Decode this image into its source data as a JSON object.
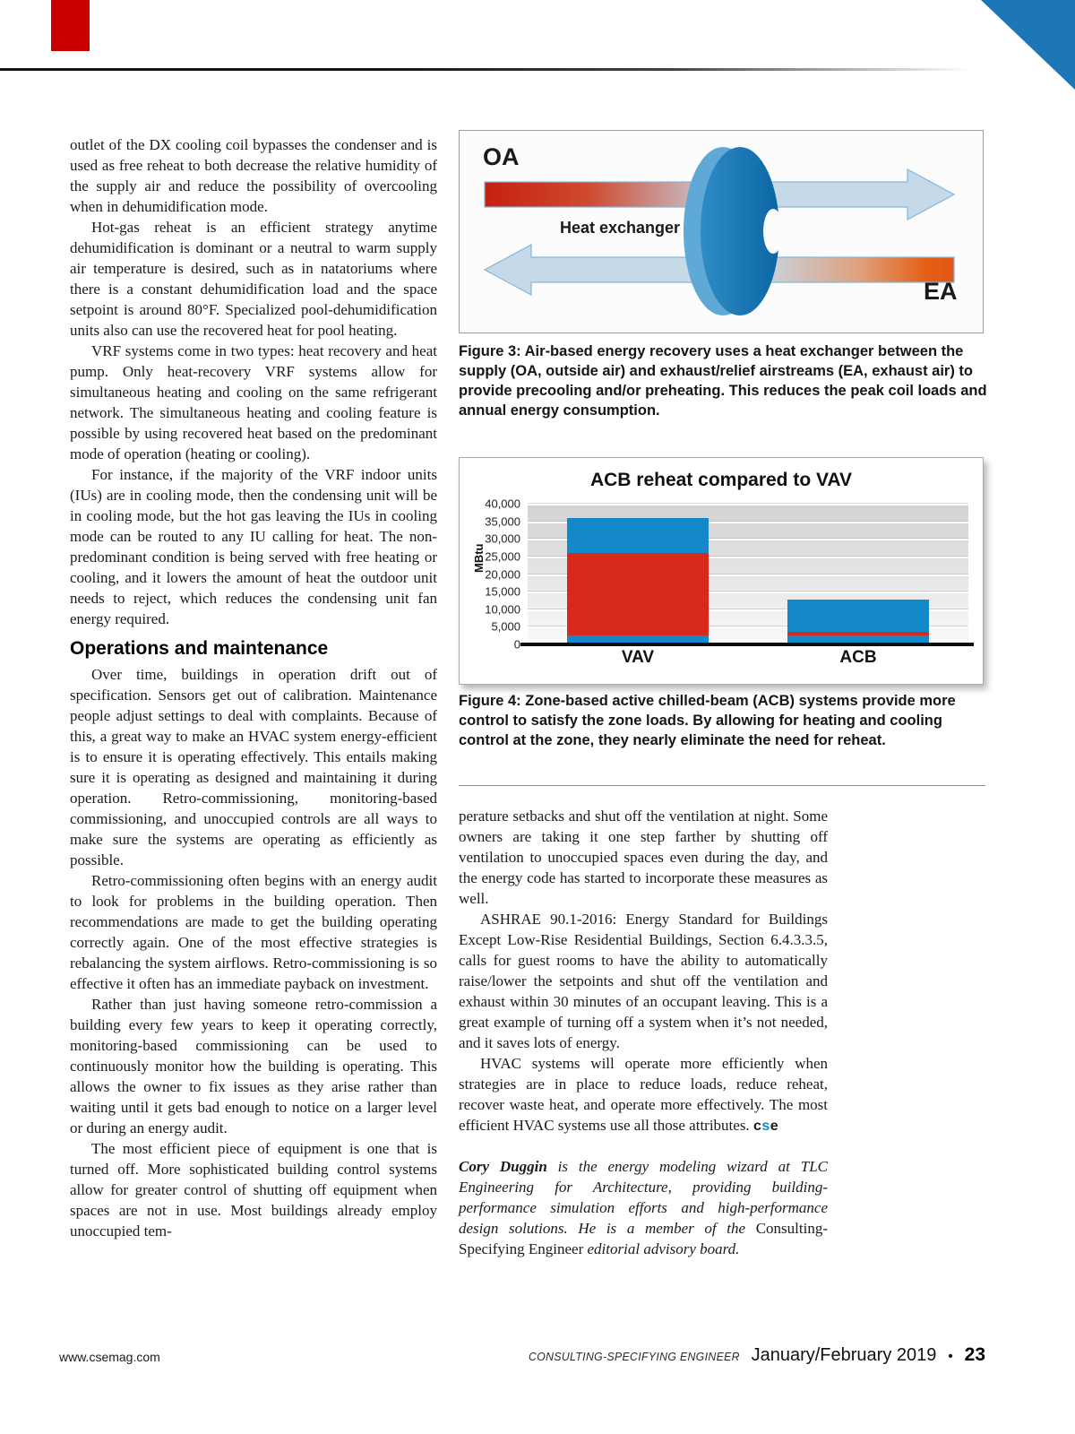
{
  "page": {
    "footer": {
      "website": "www.csemag.com",
      "magazine": "Consulting-Specifying Engineer",
      "issue": "January/February 2019",
      "bullet": "•",
      "page_number": "23"
    },
    "accent_colors": {
      "red": "#c90000",
      "blue": "#1d76b5"
    }
  },
  "article": {
    "left": {
      "paragraphs": [
        "outlet of the DX cooling coil bypasses the condenser and is used as free reheat to both decrease the relative humidity of the supply air and reduce the possibility of overcooling when in dehumidification mode.",
        "Hot-gas reheat is an efficient strategy anytime dehumidification is dominant or a neutral to warm supply air temperature is desired, such as in natatoriums where there is a constant dehumidification load and the space setpoint is around 80°F. Specialized pool-dehumidification units also can use the recovered heat for pool heating.",
        "VRF systems come in two types: heat recovery and heat pump. Only heat-recovery VRF systems allow for simultaneous heating and cooling on the same refrigerant network. The simultaneous heating and cooling feature is possible by using recovered heat based on the predominant mode of operation (heating or cooling).",
        "For instance, if the majority of the VRF indoor units (IUs) are in cooling mode, then the condensing unit will be in cooling mode, but the hot gas leaving the IUs in cooling mode can be routed to any IU calling for heat. The non-predominant condition is being served with free heating or cooling, and it lowers the amount of heat the outdoor unit needs to reject, which reduces the condensing unit fan energy required."
      ],
      "heading": "Operations and maintenance",
      "paragraphs2": [
        "Over time, buildings in operation drift out of specification. Sensors get out of calibration. Maintenance people adjust settings to deal with complaints. Because of this, a great way to make an HVAC system energy-efficient is to ensure it is operating effectively. This entails making sure it is operating as designed and maintaining it during operation. Retro-commissioning, monitoring-based commissioning, and unoccupied controls are all ways to make sure the systems are operating as efficiently as possible.",
        "Retro-commissioning often begins with an energy audit to look for problems in the building operation. Then recommendations are made to get the building operating correctly again. One of the most effective strategies is rebalancing the system airflows. Retro-commissioning is so effective it often has an immediate payback on investment.",
        "Rather than just having someone retro-commission a building every few years to keep it operating correctly, monitoring-based commissioning can be used to continuously monitor how the building is operating. This allows the owner to fix issues as they arise rather than waiting until it gets bad enough to notice on a larger level or during an energy audit.",
        "The most efficient piece of equipment is one that is turned off. More sophisticated building control systems allow for greater control of shutting off equipment when spaces are not in use. Most buildings already employ unoccupied tem-"
      ]
    },
    "right": {
      "paragraphs": [
        "perature setbacks and shut off the ventilation at night. Some owners are taking it one step farther by shutting off ventilation to unoccupied spaces even during the day, and the energy code has started to incorporate these measures as well.",
        "ASHRAE 90.1-2016: Energy Standard for Buildings Except Low-Rise Residential Buildings, Section 6.4.3.3.5, calls for guest rooms to have the ability to automatically raise/lower the setpoints and shut off the ventilation and exhaust within 30 minutes of an occupant leaving. This is a great example of turning off a system when it’s not needed, and it saves lots of energy.",
        "HVAC systems will operate more efficiently when strategies are in place to reduce loads, reduce reheat, recover waste heat, and operate more effectively. The most efficient HVAC systems use all those attributes."
      ],
      "logo": {
        "c": "c",
        "s": "s",
        "e": "e"
      },
      "bio": {
        "name": "Cory Duggin",
        "text1": " is the energy modeling wizard at TLC Engineering for Architecture, providing building-performance simulation efforts and high-performance design solutions. He is a member of the ",
        "magazine": "Consulting-Specifying Engineer",
        "text2": " editorial advisory board."
      }
    }
  },
  "figure3": {
    "labels": {
      "oa": "OA",
      "heat_exchanger": "Heat exchanger",
      "ea": "EA"
    },
    "caption": "Figure 3: Air-based energy recovery uses a heat exchanger between the supply (OA, outside air) and exhaust/relief airstreams (EA, exhaust air) to provide precooling and/or preheating. This reduces the peak coil loads and annual energy consumption."
  },
  "figure4": {
    "caption": "Figure 4: Zone-based active chilled-beam (ACB) systems provide more control to satisfy the zone loads. By allowing for heating and cooling control at the zone, they nearly eliminate the need for reheat."
  },
  "chart_data": {
    "type": "bar",
    "stacked": true,
    "title": "ACB reheat compared to VAV",
    "xlabel": "",
    "ylabel": "MBtu",
    "categories": [
      "VAV",
      "ACB"
    ],
    "series": [
      {
        "name": "blue-lower",
        "color": "#1488c8",
        "values": [
          2500,
          2500
        ]
      },
      {
        "name": "red-middle",
        "color": "#d8291d",
        "values": [
          23500,
          1000
        ]
      },
      {
        "name": "blue-upper",
        "color": "#1488c8",
        "values": [
          10000,
          9200
        ]
      }
    ],
    "totals": [
      36000,
      12700
    ],
    "ylim": [
      0,
      40000
    ],
    "yticks": [
      "40,000",
      "35,000",
      "30,000",
      "25,000",
      "20,000",
      "15,000",
      "10,000",
      "5,000",
      "0"
    ],
    "grid": true,
    "legend": false
  }
}
